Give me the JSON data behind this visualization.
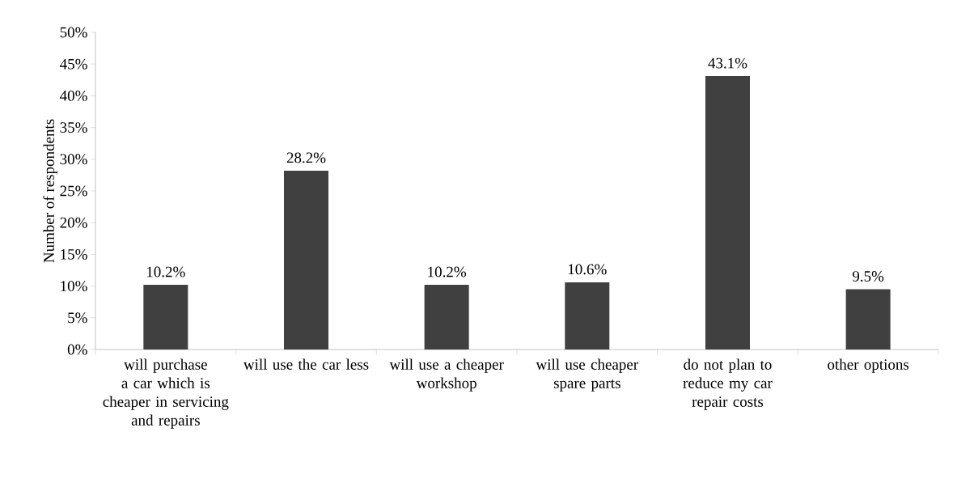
{
  "chart_data": {
    "type": "bar",
    "ylabel": "Number of respondents",
    "categories": [
      "will purchase a car which is cheaper in servicing and repairs",
      "will use the car less",
      "will use a cheaper workshop",
      "will use cheaper spare parts",
      "do not plan to reduce my car repair costs",
      "other options"
    ],
    "values": [
      10.2,
      28.2,
      10.2,
      10.6,
      43.1,
      9.5
    ],
    "value_labels": [
      "10.2%",
      "28.2%",
      "10.2%",
      "10.6%",
      "43.1%",
      "9.5%"
    ],
    "color": "#404040",
    "ylim": [
      0,
      50
    ],
    "yticks": [
      {
        "value": 0,
        "label": "0%"
      },
      {
        "value": 5,
        "label": "5%"
      },
      {
        "value": 10,
        "label": "10%"
      },
      {
        "value": 15,
        "label": "15%"
      },
      {
        "value": 20,
        "label": "20%"
      },
      {
        "value": 25,
        "label": "25%"
      },
      {
        "value": 30,
        "label": "30%"
      },
      {
        "value": 35,
        "label": "35%"
      },
      {
        "value": 40,
        "label": "40%"
      },
      {
        "value": 45,
        "label": "45%"
      },
      {
        "value": 50,
        "label": "50%"
      }
    ]
  }
}
